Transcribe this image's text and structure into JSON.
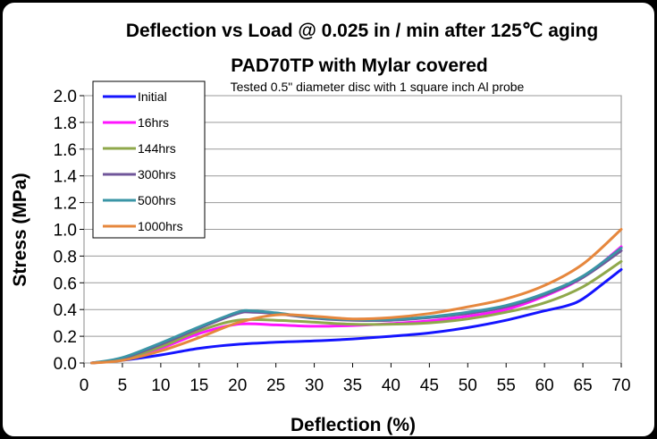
{
  "chart_data": {
    "type": "line",
    "title": "Deflection vs Load @  0.025 in / min after 125℃ aging",
    "subtitle": "PAD70TP with  Mylar covered",
    "annotation": "Tested 0.5\" diameter disc with 1 square inch Al probe",
    "xlabel": "Deflection  (%)",
    "ylabel": "Stress (MPa)",
    "xlim": [
      0,
      70
    ],
    "ylim": [
      0,
      2.0
    ],
    "xticks": [
      0,
      5,
      10,
      15,
      20,
      25,
      30,
      35,
      40,
      45,
      50,
      55,
      60,
      65,
      70
    ],
    "yticks": [
      "0.0",
      "0.2",
      "0.4",
      "0.6",
      "0.8",
      "1.0",
      "1.2",
      "1.4",
      "1.6",
      "1.8",
      "2.0"
    ],
    "legend_position": "top-left",
    "series": [
      {
        "name": "Initial",
        "color": "#1414ff",
        "x": [
          1,
          5,
          10,
          15,
          20,
          25,
          30,
          35,
          40,
          45,
          50,
          55,
          60,
          63,
          65,
          68,
          70
        ],
        "y": [
          0,
          0.02,
          0.06,
          0.11,
          0.14,
          0.155,
          0.165,
          0.18,
          0.2,
          0.225,
          0.265,
          0.32,
          0.39,
          0.43,
          0.48,
          0.61,
          0.7
        ]
      },
      {
        "name": "16hrs",
        "color": "#ff14ff",
        "x": [
          1,
          5,
          10,
          15,
          20,
          25,
          30,
          35,
          40,
          45,
          50,
          55,
          60,
          65,
          70
        ],
        "y": [
          0,
          0.03,
          0.11,
          0.22,
          0.29,
          0.285,
          0.275,
          0.28,
          0.295,
          0.315,
          0.35,
          0.4,
          0.5,
          0.64,
          0.87
        ]
      },
      {
        "name": "144hrs",
        "color": "#8fa84b",
        "x": [
          1,
          5,
          10,
          15,
          20,
          25,
          30,
          35,
          40,
          45,
          50,
          55,
          60,
          65,
          70
        ],
        "y": [
          0,
          0.03,
          0.12,
          0.24,
          0.32,
          0.32,
          0.305,
          0.29,
          0.29,
          0.3,
          0.33,
          0.38,
          0.45,
          0.57,
          0.76
        ]
      },
      {
        "name": "300hrs",
        "color": "#70569a",
        "x": [
          1,
          5,
          10,
          15,
          20,
          22,
          25,
          30,
          35,
          40,
          45,
          50,
          55,
          60,
          65,
          70
        ],
        "y": [
          0,
          0.035,
          0.14,
          0.26,
          0.37,
          0.38,
          0.37,
          0.335,
          0.32,
          0.32,
          0.34,
          0.37,
          0.42,
          0.51,
          0.64,
          0.84
        ]
      },
      {
        "name": "500hrs",
        "color": "#3a95a6",
        "x": [
          1,
          5,
          10,
          15,
          20,
          22,
          25,
          30,
          35,
          40,
          45,
          50,
          55,
          60,
          65,
          70
        ],
        "y": [
          0,
          0.04,
          0.15,
          0.27,
          0.38,
          0.39,
          0.375,
          0.34,
          0.325,
          0.325,
          0.345,
          0.38,
          0.43,
          0.52,
          0.65,
          0.86
        ]
      },
      {
        "name": "1000hrs",
        "color": "#e6873d",
        "x": [
          1,
          5,
          10,
          15,
          20,
          25,
          30,
          35,
          40,
          45,
          50,
          55,
          60,
          65,
          70
        ],
        "y": [
          0,
          0.02,
          0.09,
          0.19,
          0.3,
          0.36,
          0.35,
          0.33,
          0.34,
          0.37,
          0.42,
          0.48,
          0.58,
          0.74,
          1.0
        ]
      }
    ]
  }
}
